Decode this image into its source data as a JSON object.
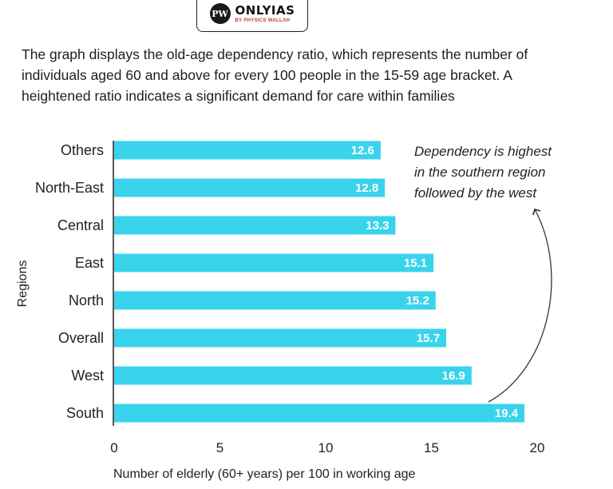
{
  "logo": {
    "mark": "PW",
    "name": "ONLYIAS",
    "tagline": "BY PHYSICS WALLAH"
  },
  "description": "The graph displays the old-age dependency ratio, which represents the number of individuals aged 60 and above for every 100 people in the 15-59 age bracket. A heightened ratio indicates a significant demand for care within families",
  "annotation": {
    "lines": [
      "Dependency is highest",
      "in the southern region",
      "followed by the west"
    ]
  },
  "chart_data": {
    "type": "bar",
    "orientation": "horizontal",
    "categories": [
      "Others",
      "North-East",
      "Central",
      "East",
      "North",
      "Overall",
      "West",
      "South"
    ],
    "values": [
      12.6,
      12.8,
      13.3,
      15.1,
      15.2,
      15.7,
      16.9,
      19.4
    ],
    "value_labels": [
      "12.6",
      "12.8",
      "13.3",
      "15.1",
      "15.2",
      "15.7",
      "16.9",
      "19.4"
    ],
    "xlabel": "Number of elderly (60+ years) per 100 in working age",
    "ylabel": "Regions",
    "xlim": [
      0,
      20
    ],
    "xticks": [
      0,
      5,
      10,
      15,
      20
    ],
    "bar_color": "#3ad3ec",
    "grid": false
  }
}
